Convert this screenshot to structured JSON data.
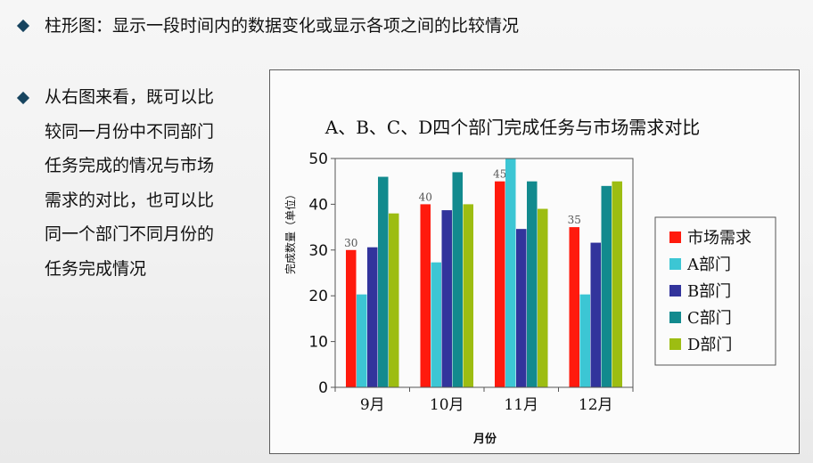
{
  "slide": {
    "heading": "柱形图：显示一段时间内的数据变化或显示各项之间的比较情况",
    "description_lines": [
      "从右图来看，既可以比",
      "较同一月份中不同部门",
      "任务完成的情况与市场",
      "需求的对比，也可以比",
      "同一个部门不同月份的",
      "任务完成情况"
    ],
    "bullet_color": "#17445f"
  },
  "chart_data": {
    "type": "bar",
    "title": "A、B、C、D四个部门完成任务与市场需求对比",
    "xlabel": "月份",
    "ylabel": "完成数量（单位）",
    "ylim": [
      0,
      50
    ],
    "yticks": [
      0,
      10,
      20,
      30,
      40,
      50
    ],
    "grid": false,
    "legend": "right",
    "categories": [
      "9月",
      "10月",
      "11月",
      "12月"
    ],
    "series": [
      {
        "name": "市场需求",
        "color": "#ff1a0d",
        "values": [
          30,
          40,
          45,
          35
        ],
        "data_labels": [
          "30",
          "40",
          "45",
          "35"
        ]
      },
      {
        "name": "A部门",
        "color": "#3cc6d4",
        "values": [
          20.3,
          27.3,
          50,
          20.3
        ]
      },
      {
        "name": "B部门",
        "color": "#32349c",
        "values": [
          30.6,
          38.7,
          34.6,
          31.6
        ]
      },
      {
        "name": "C部门",
        "color": "#128a8e",
        "values": [
          46,
          47,
          45,
          44
        ]
      },
      {
        "name": "D部门",
        "color": "#9dbd12",
        "values": [
          38,
          40,
          39,
          45
        ]
      }
    ]
  }
}
